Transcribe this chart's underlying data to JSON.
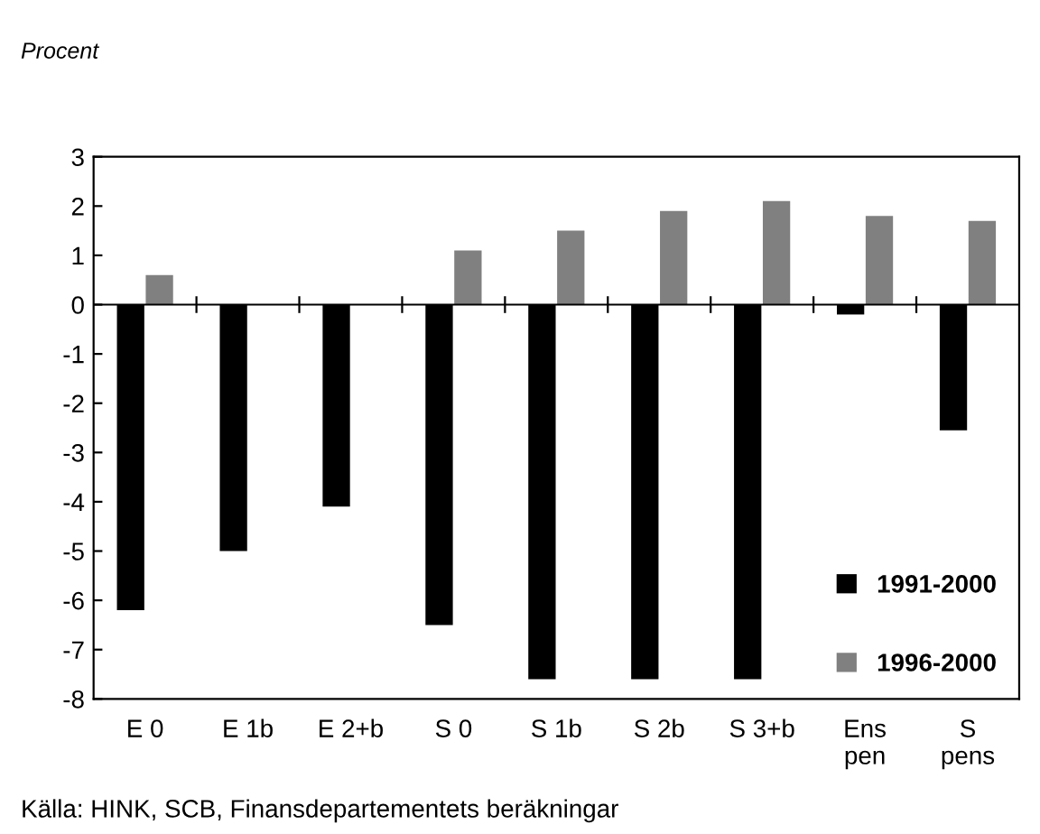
{
  "chart_data": {
    "type": "bar",
    "categories": [
      "E 0",
      "E 1b",
      "E 2+b",
      "S 0",
      "S 1b",
      "S 2b",
      "S 3+b",
      "Ens\npen",
      "S\npens"
    ],
    "series": [
      {
        "name": "1991-2000",
        "color": "#000000",
        "values": [
          -6.2,
          -5.0,
          -4.1,
          -6.5,
          -7.6,
          -7.6,
          -7.6,
          -0.2,
          -2.55
        ]
      },
      {
        "name": "1996-2000",
        "color": "#808080",
        "values": [
          0.6,
          null,
          null,
          1.1,
          1.5,
          1.9,
          2.1,
          1.8,
          1.7
        ]
      }
    ],
    "ylim": [
      -8,
      3
    ],
    "yticks": [
      -8,
      -7,
      -6,
      -5,
      -4,
      -3,
      -2,
      -1,
      0,
      1,
      2,
      3
    ],
    "legend": "bottom right",
    "annotations": [
      "Procent",
      "Källa: HINK, SCB, Finansdepartementets beräkningar"
    ]
  }
}
